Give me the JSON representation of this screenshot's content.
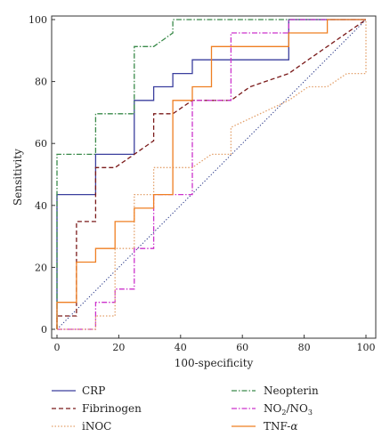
{
  "chart_data": {
    "type": "line",
    "title": "",
    "xlabel": "100-specificity",
    "ylabel": "Sensitivity",
    "xlim": [
      0,
      100
    ],
    "ylim": [
      0,
      100
    ],
    "xticks": [
      0,
      20,
      40,
      60,
      80,
      100
    ],
    "yticks": [
      0,
      20,
      40,
      60,
      80,
      100
    ],
    "grid": false,
    "legend_position": "bottom",
    "reference_line": {
      "points": [
        [
          0,
          0
        ],
        [
          100,
          100
        ]
      ],
      "color": "#1a2a80",
      "style": "dotted"
    },
    "series": [
      {
        "name": "CRP",
        "color": "#3b3f9e",
        "dash": "solid",
        "points": [
          [
            0,
            0
          ],
          [
            0,
            43.5
          ],
          [
            12.5,
            43.5
          ],
          [
            12.5,
            56.5
          ],
          [
            25,
            56.5
          ],
          [
            25,
            73.9
          ],
          [
            31.3,
            73.9
          ],
          [
            31.3,
            78.3
          ],
          [
            37.5,
            78.3
          ],
          [
            37.5,
            82.6
          ],
          [
            43.8,
            82.6
          ],
          [
            43.8,
            87
          ],
          [
            75,
            87
          ],
          [
            75,
            100
          ],
          [
            100,
            100
          ]
        ]
      },
      {
        "name": "Neopterin",
        "color": "#3a8a4a",
        "dash": "dashdot",
        "points": [
          [
            0,
            0
          ],
          [
            0,
            56.5
          ],
          [
            12.5,
            56.5
          ],
          [
            12.5,
            69.6
          ],
          [
            25,
            69.6
          ],
          [
            25,
            91.3
          ],
          [
            31.3,
            91.3
          ],
          [
            37.5,
            95.7
          ],
          [
            37.5,
            100
          ],
          [
            100,
            100
          ]
        ]
      },
      {
        "name": "Fibrinogen",
        "color": "#7a1a1a",
        "dash": "dashed",
        "points": [
          [
            0,
            0
          ],
          [
            0,
            4.3
          ],
          [
            6.3,
            4.3
          ],
          [
            6.3,
            34.8
          ],
          [
            12.5,
            34.8
          ],
          [
            12.5,
            52.2
          ],
          [
            18.8,
            52.2
          ],
          [
            25,
            56.5
          ],
          [
            31.3,
            60.9
          ],
          [
            31.3,
            69.6
          ],
          [
            37.5,
            69.6
          ],
          [
            43.8,
            73.9
          ],
          [
            56.3,
            73.9
          ],
          [
            62.5,
            78.3
          ],
          [
            75,
            82.6
          ],
          [
            81.3,
            87
          ],
          [
            93.8,
            95.7
          ],
          [
            100,
            100
          ]
        ]
      },
      {
        "name": "NO2/NO3",
        "color": "#cc33cc",
        "dash": "dashdot",
        "points": [
          [
            0,
            0
          ],
          [
            12.5,
            0
          ],
          [
            12.5,
            8.7
          ],
          [
            18.8,
            8.7
          ],
          [
            18.8,
            13
          ],
          [
            25,
            13
          ],
          [
            25,
            26.1
          ],
          [
            31.3,
            26.1
          ],
          [
            31.3,
            43.5
          ],
          [
            43.8,
            43.5
          ],
          [
            43.8,
            73.9
          ],
          [
            56.3,
            73.9
          ],
          [
            56.3,
            95.7
          ],
          [
            75,
            95.7
          ],
          [
            75,
            100
          ],
          [
            100,
            100
          ]
        ]
      },
      {
        "name": "iNOC",
        "color": "#e3a06a",
        "dash": "dotted",
        "points": [
          [
            0,
            0
          ],
          [
            12.5,
            0
          ],
          [
            12.5,
            4.3
          ],
          [
            18.8,
            4.3
          ],
          [
            18.8,
            26.1
          ],
          [
            25,
            26.1
          ],
          [
            25,
            43.5
          ],
          [
            31.3,
            43.5
          ],
          [
            31.3,
            52.2
          ],
          [
            43.8,
            52.2
          ],
          [
            50,
            56.5
          ],
          [
            56.3,
            56.5
          ],
          [
            56.3,
            65.2
          ],
          [
            75,
            73.9
          ],
          [
            81.3,
            78.3
          ],
          [
            87.5,
            78.3
          ],
          [
            93.8,
            82.6
          ],
          [
            100,
            82.6
          ],
          [
            100,
            100
          ]
        ]
      },
      {
        "name": "TNF-α",
        "color": "#ef7f22",
        "dash": "solid",
        "points": [
          [
            0,
            0
          ],
          [
            0,
            8.7
          ],
          [
            6.3,
            8.7
          ],
          [
            6.3,
            21.7
          ],
          [
            12.5,
            21.7
          ],
          [
            12.5,
            26.1
          ],
          [
            18.8,
            26.1
          ],
          [
            18.8,
            34.8
          ],
          [
            25,
            34.8
          ],
          [
            25,
            39.1
          ],
          [
            31.3,
            39.1
          ],
          [
            31.3,
            43.5
          ],
          [
            37.5,
            43.5
          ],
          [
            37.5,
            73.9
          ],
          [
            43.8,
            73.9
          ],
          [
            43.8,
            78.3
          ],
          [
            50,
            78.3
          ],
          [
            50,
            91.3
          ],
          [
            75,
            91.3
          ],
          [
            75,
            95.7
          ],
          [
            87.5,
            95.7
          ],
          [
            87.5,
            100
          ],
          [
            100,
            100
          ]
        ]
      }
    ]
  },
  "legend": {
    "crp": "CRP",
    "fibrinogen": "Fibrinogen",
    "inoc": "iNOC",
    "neopterin": "Neopterin",
    "no2_main": "NO",
    "no2_sub1": "2",
    "no2_mid": "/NO",
    "no2_sub2": "3",
    "tnf_main": "TNF-",
    "tnf_greek": "α"
  }
}
